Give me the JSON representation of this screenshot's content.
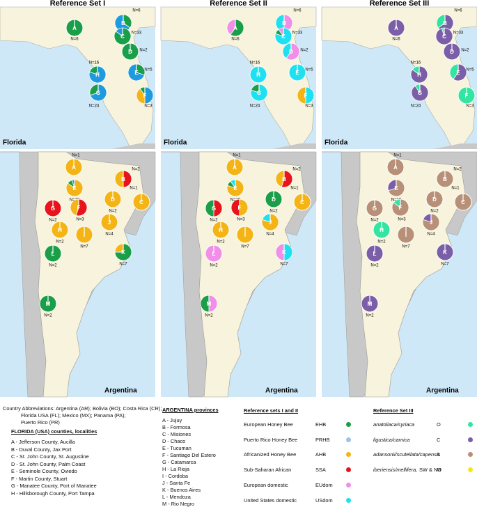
{
  "columns": [
    {
      "title": "Reference Set I",
      "florida": {
        "label": "Florida",
        "sites": [
          {
            "name": "A",
            "n": "N=6",
            "slices": [
              {
                "color": "#1a9e48",
                "value": 100
              }
            ]
          },
          {
            "name": "B",
            "n": "N=6",
            "slices": [
              {
                "color": "#1a9e48",
                "value": 35
              },
              {
                "color": "#1e9be0",
                "value": 65
              }
            ]
          },
          {
            "name": "C",
            "n": "N=33",
            "slices": [
              {
                "color": "#1a9e48",
                "value": 85
              },
              {
                "color": "#1e9be0",
                "value": 15
              }
            ]
          },
          {
            "name": "D",
            "n": "N=2",
            "slices": [
              {
                "color": "#1a9e48",
                "value": 100
              }
            ]
          },
          {
            "name": "E",
            "n": "N=5",
            "slices": [
              {
                "color": "#1a9e48",
                "value": 30
              },
              {
                "color": "#1e9be0",
                "value": 70
              }
            ]
          },
          {
            "name": "F",
            "n": "N=3",
            "slices": [
              {
                "color": "#1e9be0",
                "value": 50
              },
              {
                "color": "#f5b416",
                "value": 40
              },
              {
                "color": "#1a9e48",
                "value": 10
              }
            ]
          },
          {
            "name": "G",
            "n": "N=24",
            "slices": [
              {
                "color": "#1e9be0",
                "value": 70
              },
              {
                "color": "#1a9e48",
                "value": 30
              }
            ]
          },
          {
            "name": "H",
            "n": "N=16",
            "slices": [
              {
                "color": "#1e9be0",
                "value": 80
              },
              {
                "color": "#1a9e48",
                "value": 20
              }
            ]
          }
        ]
      },
      "argentina": {
        "label": "Argentina",
        "sites": [
          {
            "name": "A",
            "n": "N=1",
            "slices": [
              {
                "color": "#f5b416",
                "value": 100
              }
            ]
          },
          {
            "name": "B",
            "n": "N=2",
            "slices": [
              {
                "color": "#e8141b",
                "value": 50
              },
              {
                "color": "#f5b416",
                "value": 50
              }
            ]
          },
          {
            "name": "C",
            "n": "N=1",
            "slices": [
              {
                "color": "#f5b416",
                "value": 100
              }
            ]
          },
          {
            "name": "D",
            "n": "N=2",
            "slices": [
              {
                "color": "#f5b416",
                "value": 100
              }
            ]
          },
          {
            "name": "E",
            "n": "N=10",
            "slices": [
              {
                "color": "#f5b416",
                "value": 85
              },
              {
                "color": "#1a9e48",
                "value": 10
              },
              {
                "color": "#1e9be0",
                "value": 5
              }
            ]
          },
          {
            "name": "F",
            "n": "N=3",
            "slices": [
              {
                "color": "#e8141b",
                "value": 55
              },
              {
                "color": "#f5b416",
                "value": 45
              }
            ]
          },
          {
            "name": "G",
            "n": "N=2",
            "slices": [
              {
                "color": "#e8141b",
                "value": 100
              }
            ]
          },
          {
            "name": "H",
            "n": "N=2",
            "slices": [
              {
                "color": "#f5b416",
                "value": 100
              }
            ]
          },
          {
            "name": "I",
            "n": "N=7",
            "slices": [
              {
                "color": "#f5b416",
                "value": 100
              }
            ]
          },
          {
            "name": "J",
            "n": "N=4",
            "slices": [
              {
                "color": "#f5b416",
                "value": 100
              }
            ]
          },
          {
            "name": "K",
            "n": "N=7",
            "slices": [
              {
                "color": "#1a9e48",
                "value": 75
              },
              {
                "color": "#f5b416",
                "value": 25
              }
            ]
          },
          {
            "name": "L",
            "n": "N=2",
            "slices": [
              {
                "color": "#1a9e48",
                "value": 100
              }
            ]
          },
          {
            "name": "M",
            "n": "N=2",
            "slices": [
              {
                "color": "#1a9e48",
                "value": 100
              }
            ]
          }
        ]
      }
    },
    {
      "title": "Reference Set II",
      "florida": {
        "label": "Florida",
        "sites": [
          {
            "name": "A",
            "n": "N=6",
            "slices": [
              {
                "color": "#1a9e48",
                "value": 60
              },
              {
                "color": "#f08ee8",
                "value": 40
              }
            ]
          },
          {
            "name": "B",
            "n": "N=6",
            "slices": [
              {
                "color": "#f08ee8",
                "value": 50
              },
              {
                "color": "#1fe0f0",
                "value": 50
              }
            ]
          },
          {
            "name": "C",
            "n": "N=33",
            "slices": [
              {
                "color": "#1fe0f0",
                "value": 80
              },
              {
                "color": "#1a9e48",
                "value": 10
              },
              {
                "color": "#f08ee8",
                "value": 10
              }
            ]
          },
          {
            "name": "D",
            "n": "N=2",
            "slices": [
              {
                "color": "#f08ee8",
                "value": 60
              },
              {
                "color": "#1fe0f0",
                "value": 40
              }
            ]
          },
          {
            "name": "E",
            "n": "N=5",
            "slices": [
              {
                "color": "#1fe0f0",
                "value": 100
              }
            ]
          },
          {
            "name": "F",
            "n": "N=3",
            "slices": [
              {
                "color": "#1fe0f0",
                "value": 50
              },
              {
                "color": "#f5b416",
                "value": 50
              }
            ]
          },
          {
            "name": "G",
            "n": "N=24",
            "slices": [
              {
                "color": "#1fe0f0",
                "value": 80
              },
              {
                "color": "#1a9e48",
                "value": 20
              }
            ]
          },
          {
            "name": "H",
            "n": "N=16",
            "slices": [
              {
                "color": "#1fe0f0",
                "value": 100
              }
            ]
          }
        ]
      },
      "argentina": {
        "label": "Argentina",
        "sites": [
          {
            "name": "A",
            "n": "N=1",
            "slices": [
              {
                "color": "#f5b416",
                "value": 100
              }
            ]
          },
          {
            "name": "B",
            "n": "N=2",
            "slices": [
              {
                "color": "#e8141b",
                "value": 55
              },
              {
                "color": "#f5b416",
                "value": 45
              }
            ]
          },
          {
            "name": "C",
            "n": "N=1",
            "slices": [
              {
                "color": "#f5b416",
                "value": 100
              }
            ]
          },
          {
            "name": "D",
            "n": "N=2",
            "slices": [
              {
                "color": "#1a9e48",
                "value": 100
              }
            ]
          },
          {
            "name": "E",
            "n": "N=10",
            "slices": [
              {
                "color": "#f5b416",
                "value": 80
              },
              {
                "color": "#1a9e48",
                "value": 10
              },
              {
                "color": "#1fe0f0",
                "value": 10
              }
            ]
          },
          {
            "name": "F",
            "n": "N=3",
            "slices": [
              {
                "color": "#f5b416",
                "value": 50
              },
              {
                "color": "#e8141b",
                "value": 50
              }
            ]
          },
          {
            "name": "G",
            "n": "N=2",
            "slices": [
              {
                "color": "#e8141b",
                "value": 50
              },
              {
                "color": "#1a9e48",
                "value": 50
              }
            ]
          },
          {
            "name": "H",
            "n": "N=2",
            "slices": [
              {
                "color": "#f5b416",
                "value": 100
              }
            ]
          },
          {
            "name": "I",
            "n": "N=7",
            "slices": [
              {
                "color": "#f5b416",
                "value": 100
              }
            ]
          },
          {
            "name": "J",
            "n": "N=4",
            "slices": [
              {
                "color": "#f5b416",
                "value": 80
              },
              {
                "color": "#1fe0f0",
                "value": 20
              }
            ]
          },
          {
            "name": "K",
            "n": "N=7",
            "slices": [
              {
                "color": "#1fe0f0",
                "value": 50
              },
              {
                "color": "#f08ee8",
                "value": 50
              }
            ]
          },
          {
            "name": "L",
            "n": "N=2",
            "slices": [
              {
                "color": "#f08ee8",
                "value": 100
              }
            ]
          },
          {
            "name": "M",
            "n": "N=2",
            "slices": [
              {
                "color": "#f08ee8",
                "value": 50
              },
              {
                "color": "#1a9e48",
                "value": 50
              }
            ]
          }
        ]
      }
    },
    {
      "title": "Reference Set III",
      "florida": {
        "label": "Florida",
        "sites": [
          {
            "name": "A",
            "n": "N=6",
            "slices": [
              {
                "color": "#7b5ea8",
                "value": 100
              }
            ]
          },
          {
            "name": "B",
            "n": "N=6",
            "slices": [
              {
                "color": "#7b5ea8",
                "value": 65
              },
              {
                "color": "#33e5a0",
                "value": 35
              }
            ]
          },
          {
            "name": "C",
            "n": "N=33",
            "slices": [
              {
                "color": "#7b5ea8",
                "value": 95
              },
              {
                "color": "#33e5a0",
                "value": 5
              }
            ]
          },
          {
            "name": "D",
            "n": "N=2",
            "slices": [
              {
                "color": "#7b5ea8",
                "value": 100
              }
            ]
          },
          {
            "name": "E",
            "n": "N=5",
            "slices": [
              {
                "color": "#7b5ea8",
                "value": 60
              },
              {
                "color": "#33e5a0",
                "value": 40
              }
            ]
          },
          {
            "name": "F",
            "n": "N=3",
            "slices": [
              {
                "color": "#33e5a0",
                "value": 100
              }
            ]
          },
          {
            "name": "G",
            "n": "N=24",
            "slices": [
              {
                "color": "#7b5ea8",
                "value": 90
              },
              {
                "color": "#33e5a0",
                "value": 10
              }
            ]
          },
          {
            "name": "H",
            "n": "N=16",
            "slices": [
              {
                "color": "#7b5ea8",
                "value": 85
              },
              {
                "color": "#33e5a0",
                "value": 15
              }
            ]
          }
        ]
      },
      "argentina": {
        "label": "Argentina",
        "sites": [
          {
            "name": "A",
            "n": "N=1",
            "slices": [
              {
                "color": "#b89078",
                "value": 100
              }
            ]
          },
          {
            "name": "B",
            "n": "N=2",
            "slices": [
              {
                "color": "#b89078",
                "value": 100
              }
            ]
          },
          {
            "name": "C",
            "n": "N=1",
            "slices": [
              {
                "color": "#b89078",
                "value": 100
              }
            ]
          },
          {
            "name": "D",
            "n": "N=2",
            "slices": [
              {
                "color": "#b89078",
                "value": 100
              }
            ]
          },
          {
            "name": "E",
            "n": "N=10",
            "slices": [
              {
                "color": "#b89078",
                "value": 70
              },
              {
                "color": "#7b5ea8",
                "value": 30
              }
            ]
          },
          {
            "name": "F",
            "n": "N=3",
            "slices": [
              {
                "color": "#b89078",
                "value": 85
              },
              {
                "color": "#33e5a0",
                "value": 15
              }
            ]
          },
          {
            "name": "G",
            "n": "N=2",
            "slices": [
              {
                "color": "#b89078",
                "value": 100
              }
            ]
          },
          {
            "name": "H",
            "n": "N=2",
            "slices": [
              {
                "color": "#33e5a0",
                "value": 100
              }
            ]
          },
          {
            "name": "I",
            "n": "N=7",
            "slices": [
              {
                "color": "#b89078",
                "value": 100
              }
            ]
          },
          {
            "name": "J",
            "n": "N=4",
            "slices": [
              {
                "color": "#b89078",
                "value": 80
              },
              {
                "color": "#7b5ea8",
                "value": 20
              }
            ]
          },
          {
            "name": "K",
            "n": "N=7",
            "slices": [
              {
                "color": "#7b5ea8",
                "value": 100
              }
            ]
          },
          {
            "name": "L",
            "n": "N=2",
            "slices": [
              {
                "color": "#7b5ea8",
                "value": 100
              }
            ]
          },
          {
            "name": "M",
            "n": "N=2",
            "slices": [
              {
                "color": "#7b5ea8",
                "value": 100
              }
            ]
          }
        ]
      }
    }
  ],
  "legend": {
    "abbreviations": [
      "Country Abbreviations: Argentina (AR); Bolivia (BO); Costa Rica (CR);",
      "Florida USA  (FL); Mexico (MX); Panama (PA);",
      "Puerto Rico (PR)"
    ],
    "florida_heading": "FLORIDA (USA)  counties, localities",
    "florida_items": [
      "A - Jefferson County, Aucilla",
      "B - Duval County, Jax Port",
      "C - St. John County, St. Augustine",
      "D - St. John County, Palm Coast",
      "E - Seminole County, Oviedo",
      "F - Martin County, Stuart",
      "G - Manatee County, Port of Manatee",
      "H - Hillsborough County, Port Tampa"
    ],
    "argentina_heading": "ARGENTINA provinces",
    "argentina_items": [
      "A - Jujuy",
      "B - Formosa",
      "C - Misiones",
      "D - Chaco",
      "E - Tucuman",
      "F - Santiago Del Estero",
      "G - Catamarca",
      "H - La Rioja",
      "I  - Cordoba",
      "J  - Santa Fe",
      "K - Buenos Aires",
      "L  - Mendoza",
      "M - Rio Negro"
    ],
    "sets12": {
      "heading": "Reference  sets I and II",
      "rows": [
        {
          "name": "European Honey Bee",
          "code": "EHB",
          "color": "#1a9e48"
        },
        {
          "name": "Puerto Rico Honey Bee",
          "code": "PRHB",
          "color": "#9dc3e6"
        },
        {
          "name": "Africanized Honey Bee",
          "code": "AHB",
          "color": "#f5b416"
        },
        {
          "name": "Sub-Saharan African",
          "code": "SSA",
          "color": "#e8141b"
        },
        {
          "name": "European domestic",
          "code": "EUdom",
          "color": "#f08ee8"
        },
        {
          "name": "United States domestic",
          "code": "USdom",
          "color": "#1fe0f0"
        }
      ]
    },
    "set3": {
      "heading": "Reference  Set III",
      "rows": [
        {
          "name": "anatoliaca/syriaca",
          "code": "O",
          "color": "#33e5a0"
        },
        {
          "name": "ligustica/carnica",
          "code": "C",
          "color": "#7b5ea8"
        },
        {
          "name": "adansonii/scutellata/capensis",
          "code": "A",
          "color": "#b89078"
        },
        {
          "name": "iberiensis/mellifera,",
          "extra": "SW & NO",
          "code": "M",
          "color": "#f5e616"
        }
      ]
    }
  }
}
